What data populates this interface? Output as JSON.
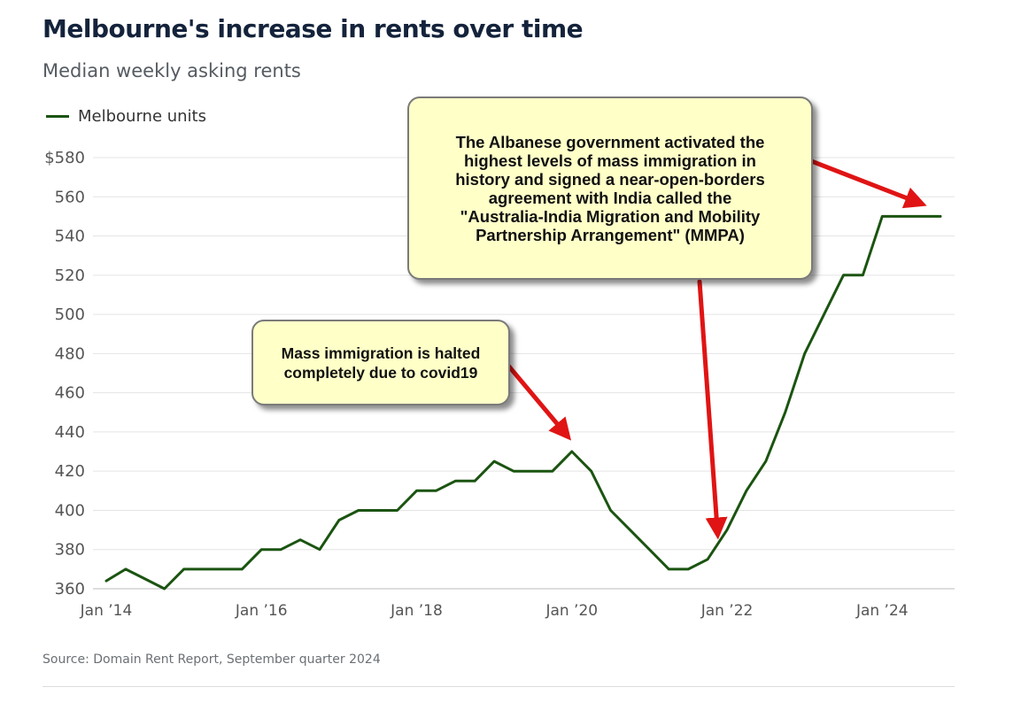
{
  "title": "Melbourne's increase in rents over time",
  "subtitle": "Median weekly asking rents",
  "source": "Source: Domain Rent Report, September quarter 2024",
  "colors": {
    "series": "#1b5411",
    "arrow": "#e01414",
    "callout_bg": "#ffffc8"
  },
  "annotations": {
    "covid": "Mass immigration is halted\ncompletely due to covid19",
    "mmpa": "The Albanese government activated the\nhighest levels of mass immigration in\nhistory and signed a near-open-borders\nagreement with India called the\n\"Australia-India Migration and Mobility\nPartnership Arrangement\" (MMPA)"
  },
  "chart_data": {
    "type": "line",
    "title": "Melbourne's increase in rents over time",
    "subtitle": "Median weekly asking rents",
    "xlabel": "",
    "ylabel": "",
    "ylim": [
      360,
      580
    ],
    "y_ticks": [
      360,
      380,
      400,
      420,
      440,
      460,
      480,
      500,
      520,
      540,
      560,
      580
    ],
    "y_tick_labels": [
      "360",
      "380",
      "400",
      "420",
      "440",
      "460",
      "480",
      "500",
      "520",
      "540",
      "560",
      "$580"
    ],
    "x_range": [
      2014.0,
      2024.75
    ],
    "x_ticks": [
      2014,
      2016,
      2018,
      2020,
      2022,
      2024
    ],
    "x_tick_labels": [
      "Jan ’14",
      "Jan ’16",
      "Jan ’18",
      "Jan ’20",
      "Jan ’22",
      "Jan ’24"
    ],
    "grid": true,
    "legend_position": "top-left",
    "series": [
      {
        "name": "Melbourne units",
        "x": [
          2014.0,
          2014.25,
          2014.5,
          2014.75,
          2015.0,
          2015.25,
          2015.5,
          2015.75,
          2016.0,
          2016.25,
          2016.5,
          2016.75,
          2017.0,
          2017.25,
          2017.5,
          2017.75,
          2018.0,
          2018.25,
          2018.5,
          2018.75,
          2019.0,
          2019.25,
          2019.5,
          2019.75,
          2020.0,
          2020.25,
          2020.5,
          2020.75,
          2021.0,
          2021.25,
          2021.5,
          2021.75,
          2022.0,
          2022.25,
          2022.5,
          2022.75,
          2023.0,
          2023.25,
          2023.5,
          2023.75,
          2024.0,
          2024.25,
          2024.5,
          2024.75
        ],
        "values": [
          364,
          370,
          365,
          360,
          370,
          370,
          370,
          370,
          380,
          380,
          385,
          380,
          395,
          400,
          400,
          400,
          410,
          410,
          415,
          415,
          425,
          420,
          420,
          420,
          430,
          420,
          400,
          390,
          380,
          370,
          370,
          375,
          390,
          410,
          425,
          450,
          480,
          500,
          520,
          520,
          550,
          550,
          550,
          550
        ]
      }
    ]
  }
}
